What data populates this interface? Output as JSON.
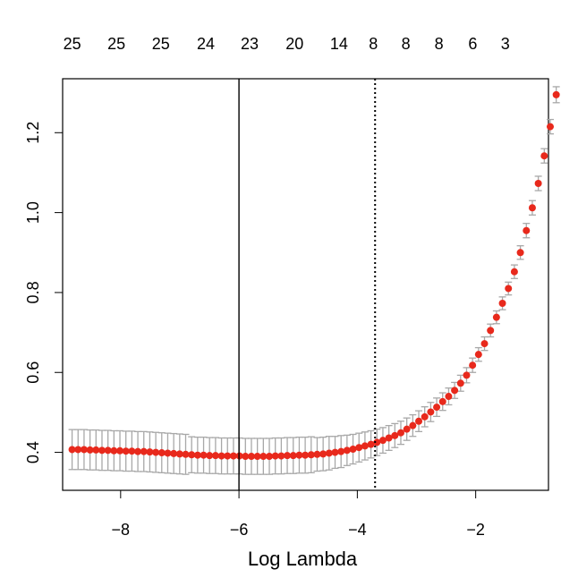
{
  "chart_data": {
    "type": "scatter",
    "title": "",
    "xlabel": "Log Lambda",
    "ylabel": "",
    "xlim": [
      -8.98,
      -0.77
    ],
    "ylim": [
      0.305,
      1.335
    ],
    "x_ticks": [
      -8,
      -6,
      -4,
      -2
    ],
    "x_tick_labels": [
      "−8",
      "−6",
      "−4",
      "−2"
    ],
    "y_ticks": [
      0.4,
      0.6,
      0.8,
      1.0,
      1.2
    ],
    "y_tick_labels": [
      "0.4",
      "0.6",
      "0.8",
      "1.0",
      "1.2"
    ],
    "top_axis": {
      "x": [
        -8.82,
        -8.07,
        -7.32,
        -6.56,
        -5.82,
        -5.06,
        -4.31,
        -3.73,
        -3.18,
        -2.62,
        -2.05,
        -1.5
      ],
      "labels": [
        "25",
        "25",
        "25",
        "24",
        "23",
        "20",
        "14",
        "8",
        "8",
        "8",
        "6",
        "3"
      ]
    },
    "vline_lambda_min": -6.0,
    "vline_lambda_1se": -3.7,
    "grid": false,
    "point_color": "#e8291c",
    "errorbar_color": "#a8a8a8",
    "series": [
      {
        "x_start": -8.82,
        "x_step": 0.101,
        "y": [
          0.407,
          0.407,
          0.407,
          0.406,
          0.406,
          0.405,
          0.405,
          0.404,
          0.404,
          0.403,
          0.403,
          0.402,
          0.402,
          0.401,
          0.4,
          0.399,
          0.398,
          0.397,
          0.396,
          0.395,
          0.394,
          0.393,
          0.393,
          0.392,
          0.392,
          0.391,
          0.391,
          0.391,
          0.391,
          0.39,
          0.39,
          0.39,
          0.39,
          0.39,
          0.391,
          0.391,
          0.392,
          0.392,
          0.393,
          0.393,
          0.394,
          0.395,
          0.396,
          0.398,
          0.4,
          0.402,
          0.405,
          0.408,
          0.412,
          0.416,
          0.42,
          0.425,
          0.43,
          0.436,
          0.442,
          0.449,
          0.458,
          0.467,
          0.478,
          0.489,
          0.501,
          0.513,
          0.527,
          0.54,
          0.555,
          0.573,
          0.593,
          0.618,
          0.645,
          0.672,
          0.705,
          0.738,
          0.773,
          0.81,
          0.852,
          0.9,
          0.955,
          1.012,
          1.073,
          1.142,
          1.215,
          1.295
        ],
        "se": [
          0.05,
          0.05,
          0.05,
          0.05,
          0.05,
          0.05,
          0.05,
          0.05,
          0.05,
          0.05,
          0.05,
          0.05,
          0.05,
          0.05,
          0.05,
          0.05,
          0.05,
          0.05,
          0.05,
          0.05,
          0.045,
          0.045,
          0.045,
          0.045,
          0.045,
          0.045,
          0.045,
          0.045,
          0.045,
          0.045,
          0.045,
          0.045,
          0.045,
          0.045,
          0.045,
          0.045,
          0.045,
          0.045,
          0.045,
          0.045,
          0.045,
          0.042,
          0.042,
          0.042,
          0.04,
          0.04,
          0.038,
          0.037,
          0.036,
          0.035,
          0.034,
          0.033,
          0.032,
          0.031,
          0.03,
          0.029,
          0.028,
          0.027,
          0.026,
          0.025,
          0.024,
          0.023,
          0.022,
          0.021,
          0.02,
          0.02,
          0.019,
          0.018,
          0.017,
          0.017,
          0.016,
          0.016,
          0.016,
          0.016,
          0.017,
          0.017,
          0.018,
          0.018,
          0.018,
          0.018,
          0.018,
          0.02
        ]
      }
    ]
  }
}
